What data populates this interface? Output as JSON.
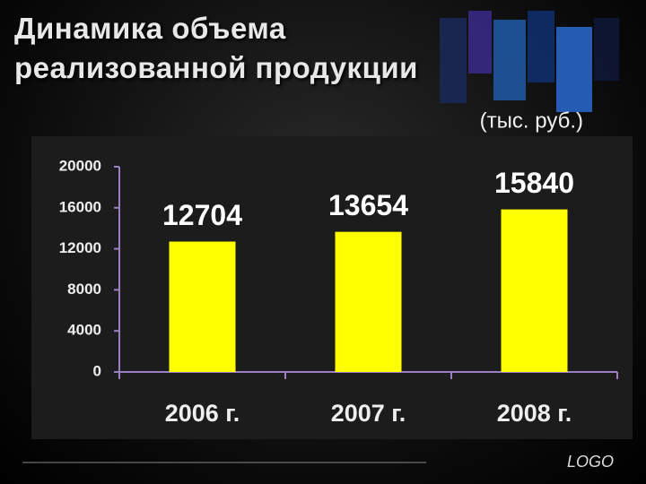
{
  "chart_data": {
    "type": "bar",
    "title": "Динамика объема\nреализованной продукции",
    "subtitle": "(тыс. руб.)",
    "categories": [
      "2006 г.",
      "2007 г.",
      "2008 г."
    ],
    "values": [
      12704,
      13654,
      15840
    ],
    "color": "#ffff00",
    "ylim": [
      0,
      20000
    ],
    "yticks": [
      0,
      4000,
      8000,
      12000,
      16000,
      20000
    ],
    "grid": false
  },
  "footer": {
    "logo": "LOGO"
  }
}
